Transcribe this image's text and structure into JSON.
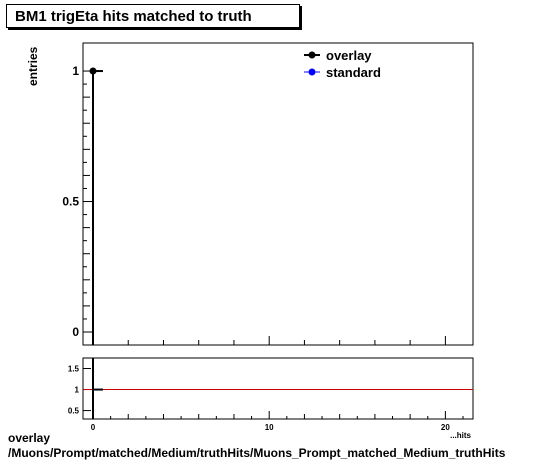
{
  "title": "BM1 trigEta hits matched to truth",
  "ylabel": "entries",
  "xlabel_partial": "...hits",
  "footer": {
    "line1": "overlay",
    "line2": "/Muons/Prompt/matched/Medium/truthHits/Muons_Prompt_matched_Medium_truthHits"
  },
  "colors": {
    "overlay": "#000000",
    "standard": "#0000ff",
    "ratio_line": "#cc0000"
  },
  "chart_data": [
    {
      "type": "line",
      "title": "BM1 trigEta hits matched to truth",
      "ylabel": "entries",
      "xlim": [
        0,
        21
      ],
      "ylim": [
        0,
        1.05
      ],
      "y_ticks": [
        0,
        0.5,
        1
      ],
      "y_tick_labels": [
        "0",
        "0.5",
        "1"
      ],
      "legend": {
        "position": "top-right",
        "entries": [
          "overlay",
          "standard"
        ]
      },
      "series": [
        {
          "name": "overlay",
          "x": [
            0
          ],
          "y": [
            1
          ]
        },
        {
          "name": "standard",
          "x": [
            0
          ],
          "y": [
            1
          ]
        }
      ],
      "grid": false
    },
    {
      "type": "line",
      "xlim": [
        0,
        21
      ],
      "ylim": [
        0.3,
        1.75
      ],
      "x_ticks": [
        0,
        10,
        20
      ],
      "x_tick_labels": [
        "0",
        "10",
        "20"
      ],
      "y_ticks": [
        0.5,
        1,
        1.5
      ],
      "y_tick_labels": [
        "0.5",
        "1",
        "1.5"
      ],
      "reference_line": 1,
      "series": [
        {
          "name": "ratio",
          "x": [
            0
          ],
          "y": [
            1
          ]
        }
      ],
      "grid": false
    }
  ]
}
